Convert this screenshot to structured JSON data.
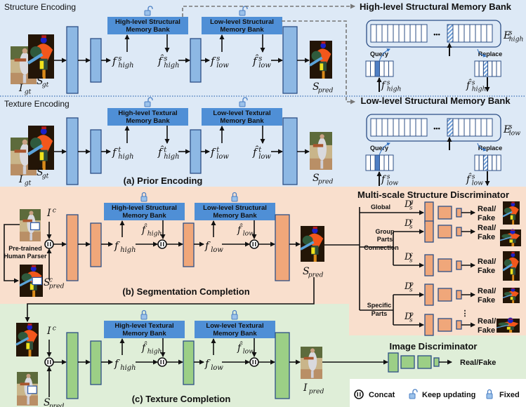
{
  "prior_encoding": {
    "structure_title": "Structure Encoding",
    "texture_title": "Texture Encoding",
    "caption": "(a) Prior Encoding"
  },
  "segmentation_completion": {
    "caption": "(b) Segmentation Completion",
    "parser_label": [
      "Pre-trained",
      "Human Parser"
    ]
  },
  "texture_completion": {
    "caption": "(c) Texture Completion"
  },
  "banks": {
    "high_struct": [
      "High-level Structural",
      "Memory Bank"
    ],
    "low_struct": [
      "Low-level Structural",
      "Memory Bank"
    ],
    "high_tex": [
      "High-level Textural",
      "Memory Bank"
    ],
    "low_tex": [
      "Low-level Textural",
      "Memory Bank"
    ]
  },
  "memory_detail": {
    "high_title": "High-level Structural Memory Bank",
    "low_title": "Low-level Structural Memory Bank",
    "query": "Query",
    "replace": "Replace",
    "dots": "•••"
  },
  "math": {
    "I_gt": {
      "b": "I",
      "sub": "gt",
      "sup": ""
    },
    "S_gt": {
      "b": "S",
      "sub": "gt",
      "sup": ""
    },
    "S_pred": {
      "b": "S",
      "sub": "pred",
      "sup": ""
    },
    "I_pred": {
      "b": "I",
      "sub": "pred",
      "sup": ""
    },
    "I_c": {
      "b": "I",
      "sub": "",
      "sup": "c"
    },
    "S_pred_c": {
      "b": "S",
      "sub": "pred",
      "sup": "c"
    },
    "f_s_high": {
      "b": "f",
      "sub": "high",
      "sup": "s"
    },
    "fh_s_high": {
      "b": "f̂",
      "sub": "high",
      "sup": "s"
    },
    "f_s_low": {
      "b": "f",
      "sub": "low",
      "sup": "s"
    },
    "fh_s_low": {
      "b": "f̂",
      "sub": "low",
      "sup": "s"
    },
    "f_t_high": {
      "b": "f",
      "sub": "high",
      "sup": "t"
    },
    "fh_t_high": {
      "b": "f̂",
      "sub": "high",
      "sup": "t"
    },
    "f_t_low": {
      "b": "f",
      "sub": "low",
      "sup": "t"
    },
    "fh_t_low": {
      "b": "f̂",
      "sub": "low",
      "sup": "t"
    },
    "f_high": {
      "b": "f",
      "sub": "high",
      "sup": ""
    },
    "fh_high": {
      "b": "f̂",
      "sub": "high",
      "sup": ""
    },
    "f_low": {
      "b": "f",
      "sub": "low",
      "sup": ""
    },
    "fh_low": {
      "b": "f̂",
      "sub": "low",
      "sup": ""
    },
    "E_s_high": {
      "b": "E",
      "sub": "high",
      "sup": "s"
    },
    "E_s_low": {
      "b": "E",
      "sub": "low",
      "sup": "s"
    },
    "D_g": {
      "b": "D",
      "sub": "s",
      "sup": "g"
    },
    "D_c": {
      "b": "D",
      "sub": "s",
      "sup": "c"
    },
    "D_p": {
      "b": "D",
      "sub": "s",
      "sup": "p"
    }
  },
  "structure_discriminator": {
    "title": "Multi-scale Structure Discriminator",
    "branch_global": "Global",
    "branch_group": [
      "Group",
      "Parts",
      "Connection"
    ],
    "branch_specific": [
      "Specific",
      "Parts"
    ],
    "output": [
      "Real/",
      "Fake"
    ],
    "more": "⋮"
  },
  "image_discriminator": {
    "title": "Image Discriminator",
    "output": "Real/Fake"
  },
  "legend": {
    "concat": "Concat",
    "keep_updating": "Keep updating",
    "fixed": "Fixed"
  },
  "colors": {
    "prior_bg": "#dde9f6",
    "seg_bg": "#f9dfcd",
    "tex_bg": "#dfeed8",
    "bank": "#4f8fd6",
    "blue_block": "#8db8e4",
    "orange_block": "#f0a77a",
    "green_block": "#9ccf86",
    "block_stroke": "#2d4f86"
  },
  "icons": {
    "unlocked": "lock-open-icon",
    "locked": "lock-icon",
    "concat": "concat-icon"
  }
}
